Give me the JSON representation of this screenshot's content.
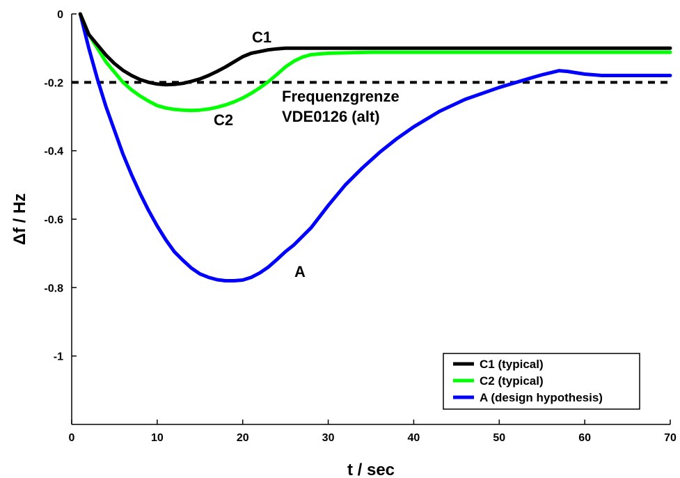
{
  "chart_data": {
    "type": "line",
    "xlabel": "t / sec",
    "ylabel": "Δf / Hz",
    "xlim": [
      0,
      70
    ],
    "ylim": [
      -1.2,
      0
    ],
    "xticks": [
      0,
      10,
      20,
      30,
      40,
      50,
      60,
      70
    ],
    "yticks": [
      0,
      -0.2,
      -0.4,
      -0.6,
      -0.8,
      -1
    ],
    "ytick_labels": [
      "0",
      "-0.2",
      "-0.4",
      "-0.6",
      "-0.8",
      "-1"
    ],
    "grid": false,
    "legend_position": "bottom-right",
    "series": [
      {
        "name": "C1 (typical)",
        "color": "#000000",
        "x": [
          1,
          2,
          3,
          4,
          5,
          6,
          7,
          8,
          9,
          10,
          11,
          12,
          13,
          14,
          15,
          16,
          17,
          18,
          19,
          20,
          21,
          22,
          23,
          24,
          25,
          26,
          27,
          30,
          40,
          50,
          60,
          70
        ],
        "y": [
          0,
          -0.06,
          -0.09,
          -0.12,
          -0.145,
          -0.165,
          -0.18,
          -0.192,
          -0.2,
          -0.205,
          -0.207,
          -0.206,
          -0.203,
          -0.197,
          -0.19,
          -0.18,
          -0.168,
          -0.155,
          -0.14,
          -0.125,
          -0.115,
          -0.11,
          -0.105,
          -0.102,
          -0.1,
          -0.1,
          -0.1,
          -0.1,
          -0.1,
          -0.1,
          -0.1,
          -0.1
        ]
      },
      {
        "name": "C2 (typical)",
        "color": "#00ff00",
        "x": [
          1,
          2,
          3,
          4,
          5,
          6,
          7,
          8,
          9,
          10,
          11,
          12,
          13,
          14,
          15,
          16,
          17,
          18,
          19,
          20,
          21,
          22,
          23,
          24,
          25,
          26,
          27,
          28,
          30,
          35,
          40,
          50,
          60,
          70
        ],
        "y": [
          0,
          -0.06,
          -0.1,
          -0.14,
          -0.17,
          -0.2,
          -0.222,
          -0.24,
          -0.255,
          -0.268,
          -0.275,
          -0.279,
          -0.281,
          -0.282,
          -0.281,
          -0.278,
          -0.273,
          -0.266,
          -0.257,
          -0.246,
          -0.232,
          -0.216,
          -0.198,
          -0.177,
          -0.155,
          -0.138,
          -0.126,
          -0.119,
          -0.115,
          -0.112,
          -0.112,
          -0.112,
          -0.112,
          -0.112
        ]
      },
      {
        "name": "A (design hypothesis)",
        "color": "#0000ff",
        "x": [
          1,
          2,
          3,
          4,
          5,
          6,
          7,
          8,
          9,
          10,
          11,
          12,
          13,
          14,
          15,
          16,
          17,
          18,
          19,
          20,
          21,
          22,
          23,
          24,
          25,
          26,
          28,
          30,
          32,
          34,
          36,
          38,
          40,
          43,
          46,
          50,
          52,
          54,
          55,
          56,
          57,
          58,
          59,
          60,
          62,
          64,
          66,
          70
        ],
        "y": [
          0,
          -0.1,
          -0.19,
          -0.27,
          -0.34,
          -0.41,
          -0.47,
          -0.525,
          -0.575,
          -0.62,
          -0.66,
          -0.695,
          -0.72,
          -0.743,
          -0.76,
          -0.77,
          -0.777,
          -0.78,
          -0.78,
          -0.778,
          -0.77,
          -0.757,
          -0.74,
          -0.718,
          -0.695,
          -0.675,
          -0.625,
          -0.56,
          -0.5,
          -0.45,
          -0.405,
          -0.365,
          -0.33,
          -0.285,
          -0.25,
          -0.215,
          -0.2,
          -0.185,
          -0.178,
          -0.172,
          -0.166,
          -0.168,
          -0.172,
          -0.176,
          -0.18,
          -0.18,
          -0.18,
          -0.18
        ]
      }
    ],
    "threshold": {
      "y": -0.2,
      "style": "dashed",
      "color": "#000000",
      "label_line1": "Frequenzgrenze",
      "label_line2": "VDE0126 (alt)"
    },
    "annotations": {
      "c1": "C1",
      "c2": "C2",
      "a": "A"
    }
  }
}
